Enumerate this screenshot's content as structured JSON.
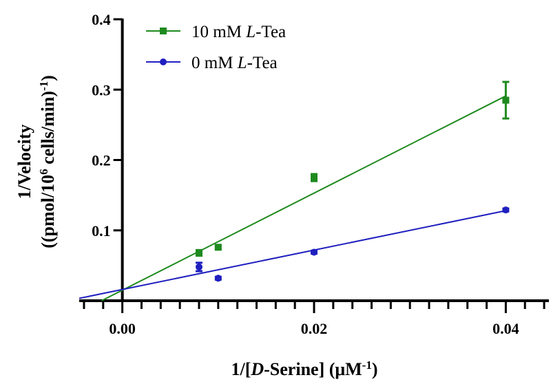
{
  "chart_data": {
    "type": "scatter",
    "xlabel": {
      "prefix": "1/[",
      "italic": "D",
      "mid": "-Serine] (μM",
      "sup": "-1",
      "suffix": ")"
    },
    "ylabel": {
      "line1": "1/Velocity",
      "line2_prefix": "((pmol/10",
      "line2_sup": "6",
      "line2_mid": " cells/min)",
      "line2_sup2": "-1",
      "line2_suffix": ")"
    },
    "xlim": [
      -0.0045,
      0.0445
    ],
    "ylim": [
      0,
      0.4
    ],
    "x_ticks": [
      0.0,
      0.02,
      0.04
    ],
    "x_tick_labels": [
      "0.00",
      "0.02",
      "0.04"
    ],
    "y_ticks": [
      0.1,
      0.2,
      0.3,
      0.4
    ],
    "y_tick_labels": [
      "0.1",
      "0.2",
      "0.3",
      "0.4"
    ],
    "legend_position": "top-left",
    "series": [
      {
        "name": "10 mM L-Tea",
        "name_prefix": "10 mM ",
        "name_italic": "L",
        "name_suffix": "-Tea",
        "color": "#1e8a1e",
        "marker": "square",
        "points": [
          {
            "x": 0.008,
            "y": 0.068,
            "err": 0.004
          },
          {
            "x": 0.01,
            "y": 0.076,
            "err": 0.002
          },
          {
            "x": 0.02,
            "y": 0.175,
            "err": 0.005
          },
          {
            "x": 0.04,
            "y": 0.285,
            "err": 0.026
          }
        ],
        "fit": {
          "slope": 6.9,
          "intercept": 0.015
        }
      },
      {
        "name": "0 mM L-Tea",
        "name_prefix": "0 mM ",
        "name_italic": "L",
        "name_suffix": "-Tea",
        "color": "#1f1fbf",
        "marker": "circle",
        "points": [
          {
            "x": 0.008,
            "y": 0.048,
            "err": 0.006
          },
          {
            "x": 0.01,
            "y": 0.032,
            "err": 0.002
          },
          {
            "x": 0.02,
            "y": 0.069,
            "err": 0.002
          },
          {
            "x": 0.04,
            "y": 0.129,
            "err": 0.002
          }
        ],
        "fit": {
          "slope": 2.8,
          "intercept": 0.016
        }
      }
    ]
  }
}
